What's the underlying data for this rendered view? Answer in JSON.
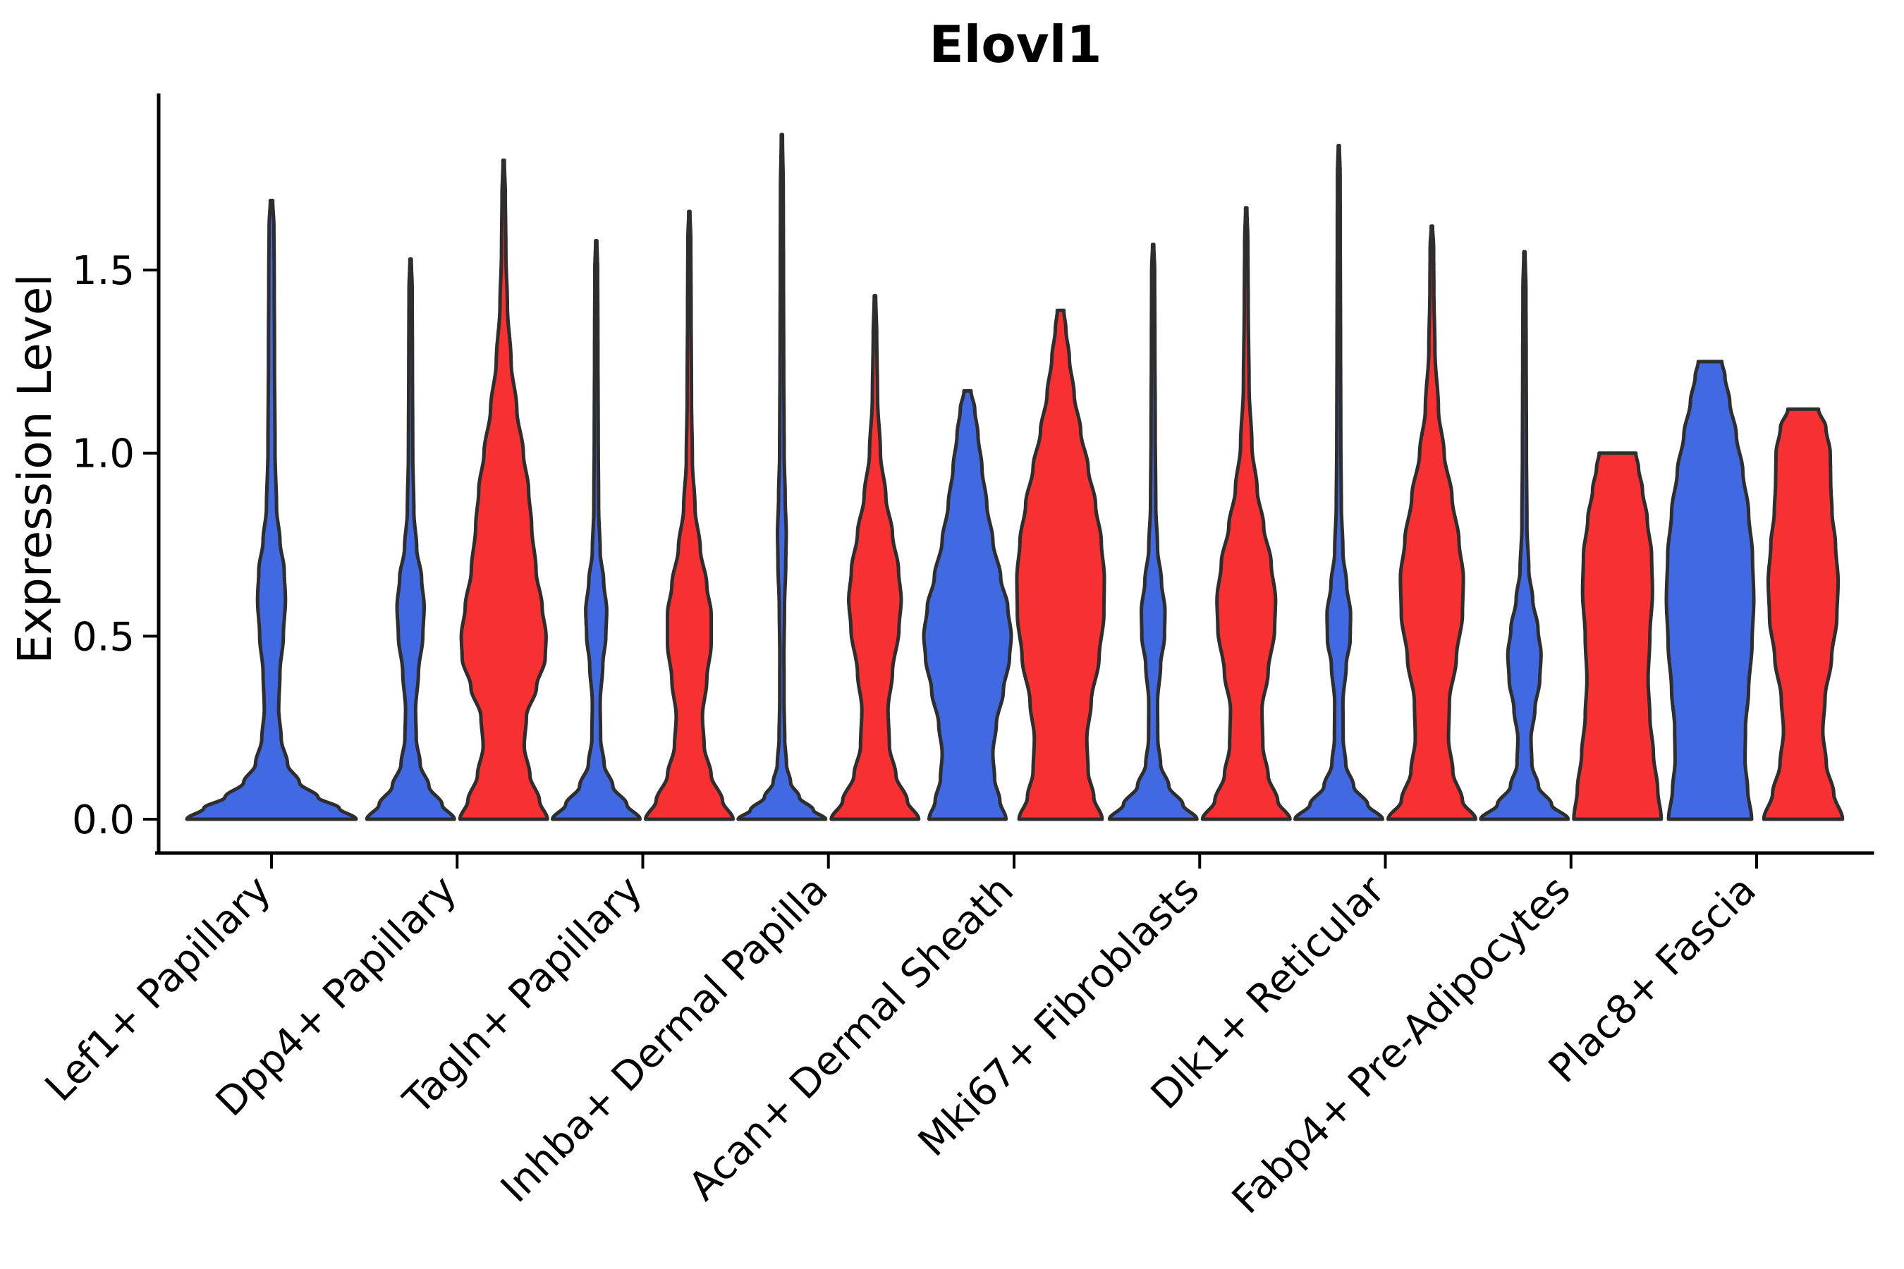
{
  "chart_data": {
    "type": "violin",
    "title": "Elovl1",
    "ylabel": "Expression Level",
    "xlabel": "",
    "grid": false,
    "legend": "none",
    "ylim": [
      0,
      2.0
    ],
    "yticks": {
      "values": [
        0.0,
        0.5,
        1.0,
        1.5
      ],
      "labels": [
        "0.0",
        "0.5",
        "1.0",
        "1.5"
      ]
    },
    "categories": [
      "Lef1+ Papillary",
      "Dpp4+ Papillary",
      "Tagln+ Papillary",
      "Inhba+ Dermal Papilla",
      "Acan+ Dermal Sheath",
      "Mki67+ Fibroblasts",
      "Dlk1+ Reticular",
      "Fabp4+ Pre-Adipocytes",
      "Plac8+ Fascia"
    ],
    "groups": {
      "blue": "#4169E1",
      "red": "#F73131"
    },
    "outline_color": "#2E2E2E",
    "violins": [
      {
        "category_index": 0,
        "group": "blue",
        "single": true,
        "max": 1.69,
        "cap": false,
        "profile": [
          [
            0,
            1.0
          ],
          [
            0.03,
            0.8
          ],
          [
            0.06,
            0.55
          ],
          [
            0.1,
            0.33
          ],
          [
            0.15,
            0.19
          ],
          [
            0.22,
            0.115
          ],
          [
            0.3,
            0.085
          ],
          [
            0.4,
            0.1
          ],
          [
            0.5,
            0.14
          ],
          [
            0.6,
            0.165
          ],
          [
            0.68,
            0.15
          ],
          [
            0.76,
            0.1
          ],
          [
            0.85,
            0.06
          ],
          [
            1.0,
            0.042
          ],
          [
            1.25,
            0.036
          ],
          [
            1.5,
            0.032
          ],
          [
            1.62,
            0.028
          ],
          [
            1.69,
            0.014
          ]
        ]
      },
      {
        "category_index": 1,
        "group": "blue",
        "single": false,
        "max": 1.53,
        "cap": false,
        "profile": [
          [
            0,
            1.0
          ],
          [
            0.04,
            0.72
          ],
          [
            0.09,
            0.42
          ],
          [
            0.15,
            0.22
          ],
          [
            0.22,
            0.13
          ],
          [
            0.3,
            0.115
          ],
          [
            0.4,
            0.18
          ],
          [
            0.5,
            0.28
          ],
          [
            0.58,
            0.31
          ],
          [
            0.66,
            0.25
          ],
          [
            0.74,
            0.14
          ],
          [
            0.84,
            0.075
          ],
          [
            1.0,
            0.05
          ],
          [
            1.25,
            0.042
          ],
          [
            1.45,
            0.036
          ],
          [
            1.53,
            0.015
          ]
        ]
      },
      {
        "category_index": 1,
        "group": "red",
        "single": false,
        "max": 1.8,
        "cap": false,
        "profile": [
          [
            0,
            1.0
          ],
          [
            0.05,
            0.82
          ],
          [
            0.12,
            0.6
          ],
          [
            0.2,
            0.47
          ],
          [
            0.28,
            0.52
          ],
          [
            0.36,
            0.75
          ],
          [
            0.44,
            0.95
          ],
          [
            0.5,
            0.97
          ],
          [
            0.58,
            0.88
          ],
          [
            0.68,
            0.74
          ],
          [
            0.8,
            0.64
          ],
          [
            0.9,
            0.57
          ],
          [
            1.0,
            0.45
          ],
          [
            1.12,
            0.3
          ],
          [
            1.25,
            0.17
          ],
          [
            1.4,
            0.085
          ],
          [
            1.55,
            0.05
          ],
          [
            1.7,
            0.038
          ],
          [
            1.8,
            0.015
          ]
        ]
      },
      {
        "category_index": 2,
        "group": "blue",
        "single": false,
        "max": 1.58,
        "cap": false,
        "profile": [
          [
            0,
            1.0
          ],
          [
            0.04,
            0.7
          ],
          [
            0.09,
            0.38
          ],
          [
            0.15,
            0.18
          ],
          [
            0.22,
            0.1
          ],
          [
            0.32,
            0.09
          ],
          [
            0.42,
            0.15
          ],
          [
            0.5,
            0.22
          ],
          [
            0.57,
            0.24
          ],
          [
            0.65,
            0.17
          ],
          [
            0.73,
            0.09
          ],
          [
            0.85,
            0.055
          ],
          [
            1.05,
            0.045
          ],
          [
            1.3,
            0.038
          ],
          [
            1.5,
            0.032
          ],
          [
            1.58,
            0.014
          ]
        ]
      },
      {
        "category_index": 2,
        "group": "red",
        "single": false,
        "max": 1.66,
        "cap": false,
        "profile": [
          [
            0,
            1.0
          ],
          [
            0.05,
            0.76
          ],
          [
            0.12,
            0.5
          ],
          [
            0.2,
            0.34
          ],
          [
            0.28,
            0.3
          ],
          [
            0.38,
            0.4
          ],
          [
            0.48,
            0.5
          ],
          [
            0.56,
            0.5
          ],
          [
            0.64,
            0.4
          ],
          [
            0.74,
            0.25
          ],
          [
            0.85,
            0.13
          ],
          [
            0.98,
            0.07
          ],
          [
            1.15,
            0.05
          ],
          [
            1.4,
            0.04
          ],
          [
            1.58,
            0.034
          ],
          [
            1.66,
            0.014
          ]
        ]
      },
      {
        "category_index": 3,
        "group": "blue",
        "single": false,
        "max": 1.87,
        "cap": false,
        "profile": [
          [
            0,
            1.0
          ],
          [
            0.025,
            0.72
          ],
          [
            0.06,
            0.4
          ],
          [
            0.1,
            0.2
          ],
          [
            0.15,
            0.105
          ],
          [
            0.22,
            0.065
          ],
          [
            0.32,
            0.05
          ],
          [
            0.45,
            0.048
          ],
          [
            0.58,
            0.06
          ],
          [
            0.7,
            0.09
          ],
          [
            0.78,
            0.1
          ],
          [
            0.88,
            0.075
          ],
          [
            1.0,
            0.052
          ],
          [
            1.25,
            0.042
          ],
          [
            1.5,
            0.036
          ],
          [
            1.72,
            0.032
          ],
          [
            1.87,
            0.013
          ]
        ]
      },
      {
        "category_index": 3,
        "group": "red",
        "single": false,
        "max": 1.43,
        "cap": false,
        "profile": [
          [
            0,
            1.0
          ],
          [
            0.05,
            0.74
          ],
          [
            0.12,
            0.48
          ],
          [
            0.2,
            0.33
          ],
          [
            0.3,
            0.3
          ],
          [
            0.4,
            0.4
          ],
          [
            0.52,
            0.55
          ],
          [
            0.6,
            0.6
          ],
          [
            0.68,
            0.54
          ],
          [
            0.78,
            0.4
          ],
          [
            0.88,
            0.25
          ],
          [
            1.0,
            0.125
          ],
          [
            1.15,
            0.06
          ],
          [
            1.32,
            0.04
          ],
          [
            1.43,
            0.016
          ]
        ]
      },
      {
        "category_index": 4,
        "group": "blue",
        "single": false,
        "max": 1.17,
        "cap": true,
        "profile": [
          [
            0,
            0.88
          ],
          [
            0.05,
            0.74
          ],
          [
            0.11,
            0.62
          ],
          [
            0.18,
            0.58
          ],
          [
            0.26,
            0.66
          ],
          [
            0.35,
            0.82
          ],
          [
            0.44,
            0.96
          ],
          [
            0.5,
            1.0
          ],
          [
            0.58,
            0.92
          ],
          [
            0.66,
            0.76
          ],
          [
            0.76,
            0.58
          ],
          [
            0.86,
            0.44
          ],
          [
            0.96,
            0.33
          ],
          [
            1.05,
            0.24
          ],
          [
            1.12,
            0.165
          ],
          [
            1.17,
            0.08
          ]
        ]
      },
      {
        "category_index": 4,
        "group": "red",
        "single": false,
        "max": 1.39,
        "cap": true,
        "profile": [
          [
            0,
            0.95
          ],
          [
            0.06,
            0.76
          ],
          [
            0.13,
            0.63
          ],
          [
            0.22,
            0.6
          ],
          [
            0.32,
            0.7
          ],
          [
            0.44,
            0.88
          ],
          [
            0.56,
            0.99
          ],
          [
            0.66,
            1.0
          ],
          [
            0.76,
            0.93
          ],
          [
            0.86,
            0.8
          ],
          [
            0.96,
            0.63
          ],
          [
            1.06,
            0.46
          ],
          [
            1.16,
            0.31
          ],
          [
            1.26,
            0.2
          ],
          [
            1.34,
            0.12
          ],
          [
            1.39,
            0.075
          ]
        ]
      },
      {
        "category_index": 5,
        "group": "blue",
        "single": false,
        "max": 1.57,
        "cap": false,
        "profile": [
          [
            0,
            1.0
          ],
          [
            0.04,
            0.68
          ],
          [
            0.09,
            0.36
          ],
          [
            0.15,
            0.17
          ],
          [
            0.22,
            0.105
          ],
          [
            0.32,
            0.1
          ],
          [
            0.42,
            0.17
          ],
          [
            0.5,
            0.26
          ],
          [
            0.57,
            0.27
          ],
          [
            0.65,
            0.19
          ],
          [
            0.74,
            0.1
          ],
          [
            0.86,
            0.06
          ],
          [
            1.05,
            0.048
          ],
          [
            1.3,
            0.04
          ],
          [
            1.5,
            0.034
          ],
          [
            1.57,
            0.014
          ]
        ]
      },
      {
        "category_index": 5,
        "group": "red",
        "single": false,
        "max": 1.67,
        "cap": false,
        "profile": [
          [
            0,
            1.0
          ],
          [
            0.05,
            0.72
          ],
          [
            0.12,
            0.5
          ],
          [
            0.2,
            0.38
          ],
          [
            0.3,
            0.36
          ],
          [
            0.4,
            0.5
          ],
          [
            0.52,
            0.65
          ],
          [
            0.6,
            0.67
          ],
          [
            0.7,
            0.57
          ],
          [
            0.8,
            0.4
          ],
          [
            0.9,
            0.25
          ],
          [
            1.02,
            0.13
          ],
          [
            1.18,
            0.065
          ],
          [
            1.4,
            0.045
          ],
          [
            1.58,
            0.036
          ],
          [
            1.67,
            0.015
          ]
        ]
      },
      {
        "category_index": 6,
        "group": "blue",
        "single": false,
        "max": 1.84,
        "cap": false,
        "profile": [
          [
            0,
            1.0
          ],
          [
            0.04,
            0.66
          ],
          [
            0.09,
            0.34
          ],
          [
            0.15,
            0.16
          ],
          [
            0.22,
            0.1
          ],
          [
            0.32,
            0.095
          ],
          [
            0.42,
            0.17
          ],
          [
            0.49,
            0.26
          ],
          [
            0.56,
            0.27
          ],
          [
            0.64,
            0.18
          ],
          [
            0.73,
            0.095
          ],
          [
            0.86,
            0.058
          ],
          [
            1.05,
            0.046
          ],
          [
            1.3,
            0.04
          ],
          [
            1.6,
            0.034
          ],
          [
            1.76,
            0.03
          ],
          [
            1.84,
            0.013
          ]
        ]
      },
      {
        "category_index": 6,
        "group": "red",
        "single": false,
        "max": 1.62,
        "cap": false,
        "profile": [
          [
            0,
            1.0
          ],
          [
            0.05,
            0.7
          ],
          [
            0.13,
            0.48
          ],
          [
            0.22,
            0.38
          ],
          [
            0.32,
            0.4
          ],
          [
            0.44,
            0.56
          ],
          [
            0.56,
            0.7
          ],
          [
            0.66,
            0.72
          ],
          [
            0.76,
            0.62
          ],
          [
            0.88,
            0.46
          ],
          [
            1.0,
            0.28
          ],
          [
            1.12,
            0.15
          ],
          [
            1.28,
            0.07
          ],
          [
            1.45,
            0.045
          ],
          [
            1.56,
            0.04
          ],
          [
            1.62,
            0.016
          ]
        ]
      },
      {
        "category_index": 7,
        "group": "blue",
        "single": false,
        "max": 1.55,
        "cap": false,
        "profile": [
          [
            0,
            1.0
          ],
          [
            0.04,
            0.62
          ],
          [
            0.09,
            0.32
          ],
          [
            0.15,
            0.17
          ],
          [
            0.22,
            0.15
          ],
          [
            0.3,
            0.24
          ],
          [
            0.38,
            0.35
          ],
          [
            0.45,
            0.38
          ],
          [
            0.52,
            0.31
          ],
          [
            0.6,
            0.19
          ],
          [
            0.68,
            0.1
          ],
          [
            0.8,
            0.058
          ],
          [
            1.0,
            0.046
          ],
          [
            1.25,
            0.04
          ],
          [
            1.45,
            0.034
          ],
          [
            1.55,
            0.014
          ]
        ]
      },
      {
        "category_index": 7,
        "group": "red",
        "single": false,
        "max": 1.0,
        "cap": true,
        "profile": [
          [
            0,
            1.0
          ],
          [
            0.08,
            0.92
          ],
          [
            0.18,
            0.82
          ],
          [
            0.28,
            0.74
          ],
          [
            0.38,
            0.7
          ],
          [
            0.5,
            0.74
          ],
          [
            0.62,
            0.8
          ],
          [
            0.72,
            0.78
          ],
          [
            0.82,
            0.68
          ],
          [
            0.9,
            0.57
          ],
          [
            0.96,
            0.48
          ],
          [
            1.0,
            0.42
          ]
        ]
      },
      {
        "category_index": 8,
        "group": "blue",
        "single": false,
        "max": 1.25,
        "cap": true,
        "profile": [
          [
            0,
            0.95
          ],
          [
            0.08,
            0.86
          ],
          [
            0.16,
            0.8
          ],
          [
            0.25,
            0.81
          ],
          [
            0.35,
            0.88
          ],
          [
            0.48,
            0.96
          ],
          [
            0.6,
            1.0
          ],
          [
            0.72,
            0.97
          ],
          [
            0.84,
            0.88
          ],
          [
            0.95,
            0.75
          ],
          [
            1.05,
            0.6
          ],
          [
            1.14,
            0.45
          ],
          [
            1.21,
            0.34
          ],
          [
            1.25,
            0.27
          ]
        ]
      },
      {
        "category_index": 8,
        "group": "red",
        "single": false,
        "max": 1.12,
        "cap": true,
        "profile": [
          [
            0,
            0.9
          ],
          [
            0.07,
            0.7
          ],
          [
            0.15,
            0.53
          ],
          [
            0.24,
            0.45
          ],
          [
            0.33,
            0.5
          ],
          [
            0.44,
            0.65
          ],
          [
            0.55,
            0.77
          ],
          [
            0.65,
            0.8
          ],
          [
            0.75,
            0.74
          ],
          [
            0.84,
            0.66
          ],
          [
            0.92,
            0.63
          ],
          [
            1.0,
            0.62
          ],
          [
            1.07,
            0.52
          ],
          [
            1.12,
            0.35
          ]
        ]
      }
    ]
  }
}
